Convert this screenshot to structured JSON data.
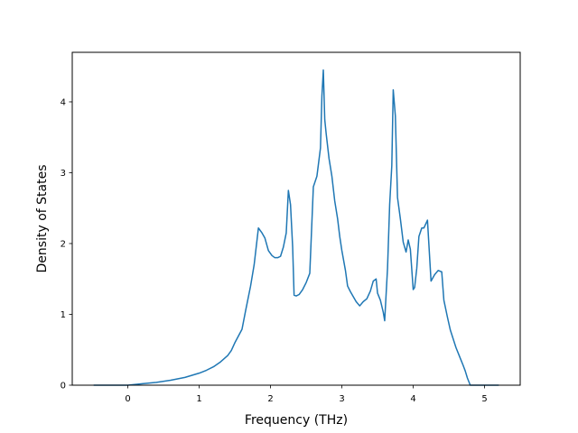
{
  "chart_data": {
    "type": "line",
    "xlabel": "Frequency (THz)",
    "ylabel": "Density of States",
    "xlim": [
      -0.78,
      5.5
    ],
    "ylim": [
      0,
      4.7
    ],
    "grid": false,
    "line_color": "#1f77b4",
    "xticks": [
      {
        "value": 0,
        "label": "0"
      },
      {
        "value": 1,
        "label": "1"
      },
      {
        "value": 2,
        "label": "2"
      },
      {
        "value": 3,
        "label": "3"
      },
      {
        "value": 4,
        "label": "4"
      },
      {
        "value": 5,
        "label": "5"
      }
    ],
    "yticks": [
      {
        "value": 0,
        "label": "0"
      },
      {
        "value": 1,
        "label": "1"
      },
      {
        "value": 2,
        "label": "2"
      },
      {
        "value": 3,
        "label": "3"
      },
      {
        "value": 4,
        "label": "4"
      }
    ],
    "series": [
      {
        "x": [
          -0.48,
          0.0,
          0.2,
          0.4,
          0.6,
          0.8,
          1.0,
          1.1,
          1.2,
          1.3,
          1.4,
          1.45,
          1.5,
          1.6,
          1.65,
          1.72,
          1.77,
          1.83,
          1.88,
          1.92,
          1.97,
          2.02,
          2.06,
          2.1,
          2.14,
          2.18,
          2.22,
          2.25,
          2.28,
          2.31,
          2.33,
          2.36,
          2.4,
          2.45,
          2.5,
          2.55,
          2.6,
          2.65,
          2.7,
          2.72,
          2.74,
          2.76,
          2.78,
          2.82,
          2.86,
          2.9,
          2.94,
          2.97,
          3.0,
          3.05,
          3.08,
          3.12,
          3.16,
          3.2,
          3.25,
          3.3,
          3.35,
          3.4,
          3.44,
          3.48,
          3.5,
          3.54,
          3.58,
          3.6,
          3.64,
          3.67,
          3.7,
          3.72,
          3.75,
          3.78,
          3.82,
          3.86,
          3.9,
          3.93,
          3.96,
          4.0,
          4.02,
          4.05,
          4.08,
          4.12,
          4.15,
          4.2,
          4.25,
          4.3,
          4.35,
          4.4,
          4.43,
          4.48,
          4.52,
          4.6,
          4.66,
          4.7,
          4.73,
          4.76,
          4.8,
          5.0,
          5.2
        ],
        "y": [
          0.0,
          0.0,
          0.02,
          0.04,
          0.07,
          0.11,
          0.17,
          0.21,
          0.26,
          0.33,
          0.42,
          0.49,
          0.6,
          0.79,
          1.05,
          1.4,
          1.7,
          2.22,
          2.15,
          2.08,
          1.9,
          1.83,
          1.8,
          1.8,
          1.82,
          1.95,
          2.15,
          2.75,
          2.55,
          1.95,
          1.27,
          1.26,
          1.28,
          1.35,
          1.45,
          1.58,
          2.8,
          2.95,
          3.35,
          4.08,
          4.45,
          3.75,
          3.55,
          3.2,
          2.95,
          2.6,
          2.35,
          2.1,
          1.9,
          1.62,
          1.4,
          1.32,
          1.25,
          1.18,
          1.12,
          1.18,
          1.22,
          1.33,
          1.47,
          1.5,
          1.3,
          1.2,
          1.03,
          0.91,
          1.65,
          2.55,
          3.1,
          4.17,
          3.8,
          2.65,
          2.35,
          2.02,
          1.88,
          2.05,
          1.92,
          1.35,
          1.38,
          1.65,
          2.1,
          2.22,
          2.22,
          2.33,
          1.47,
          1.56,
          1.62,
          1.6,
          1.2,
          0.96,
          0.78,
          0.53,
          0.38,
          0.28,
          0.2,
          0.1,
          0.0,
          0.0,
          0.0
        ]
      }
    ]
  }
}
